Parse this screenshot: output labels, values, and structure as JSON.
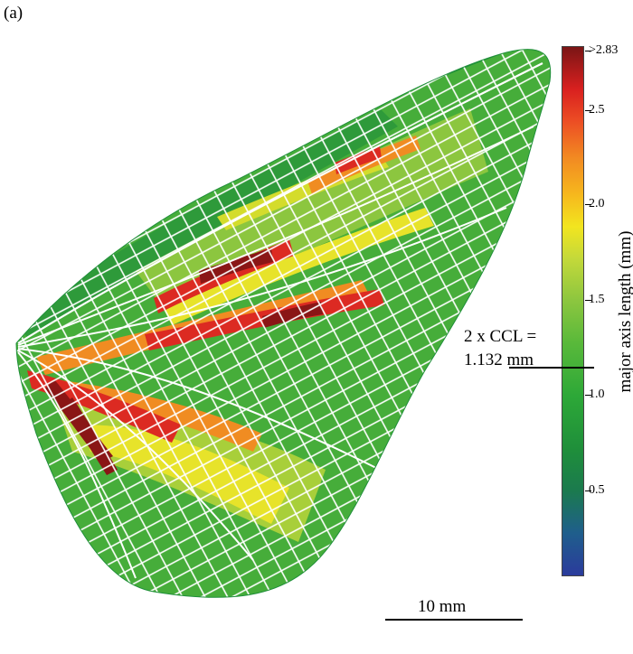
{
  "panel_label": "(a)",
  "colorbar": {
    "title": "major axis length (mm)",
    "ticks": [
      {
        "label": ">2.83",
        "value": 2.83
      },
      {
        "label": "2.5",
        "value": 2.5
      },
      {
        "label": "2.0",
        "value": 2.0
      },
      {
        "label": "1.5",
        "value": 1.5
      },
      {
        "label": "1.0",
        "value": 1.0
      },
      {
        "label": "0.5",
        "value": 0.5
      }
    ],
    "colors": [
      "#2b3b9c",
      "#1b7a4e",
      "#2da838",
      "#8cc63f",
      "#f2e51f",
      "#f28a22",
      "#d9201f",
      "#7a1515"
    ]
  },
  "ccl_annotation": {
    "line1": "2 x CCL =",
    "line2": "1.132 mm",
    "value_mm": 1.132
  },
  "scale_bar": {
    "label": "10 mm",
    "length_mm": 10
  },
  "wing": {
    "fill_colors": {
      "dark_green": "#1f8f3a",
      "green": "#46ad3a",
      "light_green": "#8cc63f",
      "yellow": "#e7e32a",
      "orange": "#f08c22",
      "red": "#dc2a22",
      "dark_red": "#8a1616",
      "navy": "#2b3b9c"
    }
  }
}
